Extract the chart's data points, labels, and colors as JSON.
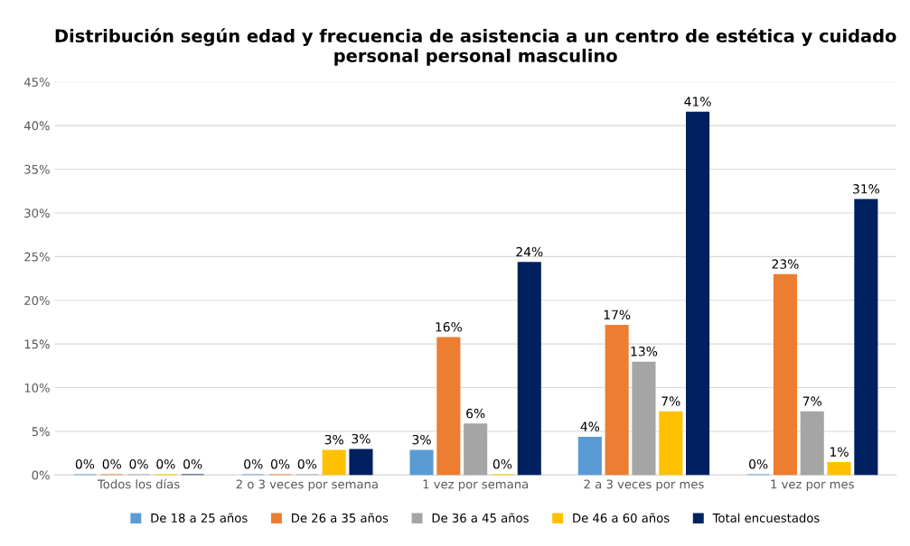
{
  "chart_data": {
    "type": "bar",
    "title": "Distribución según edad y frecuencia de asistencia a un centro de estética y cuidado personal personal masculino",
    "categories": [
      "Todos los días",
      "2 o 3 veces por semana",
      "1 vez por semana",
      "2 a 3 veces por mes",
      "1 vez por mes"
    ],
    "series": [
      {
        "name": "De 18 a 25 años",
        "color": "#5b9bd5",
        "values": [
          0,
          0,
          2.8,
          4.3,
          0
        ],
        "value_labels": [
          "0%",
          "0%",
          "3%",
          "4%",
          "0%"
        ]
      },
      {
        "name": "De 26 a 35 años",
        "color": "#ed7d31",
        "values": [
          0,
          0,
          15.7,
          17.1,
          22.9
        ],
        "value_labels": [
          "0%",
          "0%",
          "16%",
          "17%",
          "23%"
        ]
      },
      {
        "name": "De 36 a 45 años",
        "color": "#a5a5a5",
        "values": [
          0,
          0,
          5.8,
          12.9,
          7.2
        ],
        "value_labels": [
          "0%",
          "0%",
          "6%",
          "13%",
          "7%"
        ]
      },
      {
        "name": "De 46 a 60 años",
        "color": "#ffc000",
        "values": [
          0,
          2.8,
          0,
          7.2,
          1.4
        ],
        "value_labels": [
          "0%",
          "3%",
          "0%",
          "7%",
          "1%"
        ]
      },
      {
        "name": "Total encuestados",
        "color": "#002060",
        "values": [
          0,
          2.9,
          24.3,
          41.5,
          31.5
        ],
        "value_labels": [
          "0%",
          "3%",
          "24%",
          "41%",
          "31%"
        ]
      }
    ],
    "ylim": [
      0,
      45
    ],
    "yticks": [
      {
        "value": 0,
        "label": "0%"
      },
      {
        "value": 5,
        "label": "5%"
      },
      {
        "value": 10,
        "label": "10%"
      },
      {
        "value": 15,
        "label": "15%"
      },
      {
        "value": 20,
        "label": "20%"
      },
      {
        "value": 25,
        "label": "25%"
      },
      {
        "value": 30,
        "label": "30%"
      },
      {
        "value": 35,
        "label": "35%"
      },
      {
        "value": 40,
        "label": "40%"
      },
      {
        "value": 45,
        "label": "45%"
      }
    ],
    "grid": "y",
    "legend": "bottom"
  }
}
